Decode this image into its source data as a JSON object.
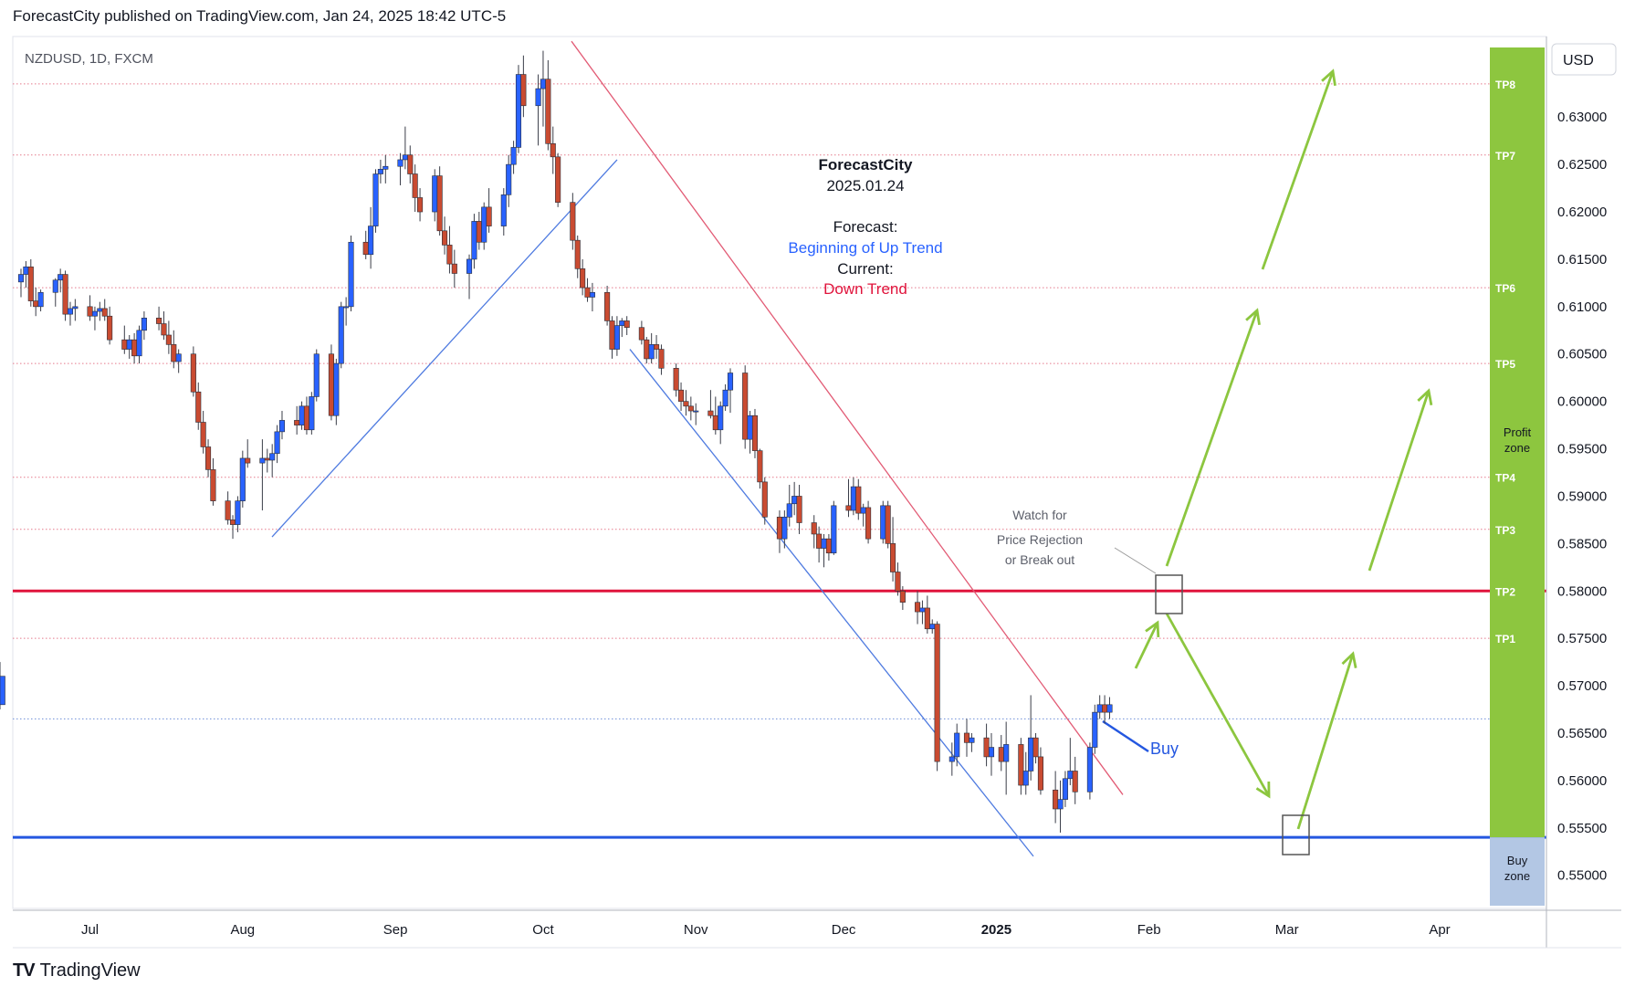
{
  "header": {
    "published": "ForecastCity published on TradingView.com, Jan 24, 2025 18:42 UTC-5"
  },
  "footer": {
    "brand": "TradingView",
    "logo": "TV"
  },
  "chart_data": {
    "type": "candlestick",
    "symbol": "NZDUSD, 1D, FXCM",
    "currency": "USD",
    "ylim": [
      0.5465,
      0.6385
    ],
    "y_ticks": [
      "0.63000",
      "0.62500",
      "0.62000",
      "0.61500",
      "0.61000",
      "0.60500",
      "0.60000",
      "0.59500",
      "0.59000",
      "0.58500",
      "0.58000",
      "0.57500",
      "0.57000",
      "0.56500",
      "0.56000",
      "0.55500",
      "0.55000"
    ],
    "x_ticks": [
      "Jul",
      "Aug",
      "Sep",
      "Oct",
      "Nov",
      "Dec",
      "2025",
      "Feb",
      "Mar",
      "Apr"
    ],
    "annotation": {
      "author": "ForecastCity",
      "date": "2025.01.24",
      "forecast_label": "Forecast:",
      "forecast_value": "Beginning of Up Trend",
      "current_label": "Current:",
      "current_value": "Down Trend"
    },
    "watch_note": [
      "Watch for",
      "Price Rejection",
      "or Break out"
    ],
    "buy_label": "Buy",
    "levels": [
      {
        "name": "TP8",
        "value": 0.6335
      },
      {
        "name": "TP7",
        "value": 0.626
      },
      {
        "name": "TP6",
        "value": 0.612
      },
      {
        "name": "TP5",
        "value": 0.604
      },
      {
        "name": "TP4",
        "value": 0.592
      },
      {
        "name": "TP3",
        "value": 0.5865
      },
      {
        "name": "TP2",
        "value": 0.58
      },
      {
        "name": "TP1",
        "value": 0.575
      }
    ],
    "resistance": 0.58,
    "support": 0.554,
    "dotted_blue_level": 0.5665,
    "zones": {
      "profit": "Profit zone",
      "buy": "Buy zone"
    },
    "colors": {
      "up": "#2962ff",
      "down": "#c94b31",
      "resistance": "#e0143c",
      "support": "#2457e0",
      "forecast_arrow": "#8cc63f",
      "profit_zone": "#8dc63f",
      "buy_zone": "#b3c7e4",
      "trend_line": "#e25b75",
      "channel": "#4f7be0"
    },
    "dates": [
      "2024-06-17",
      "2024-06-18",
      "2024-06-19",
      "2024-06-20",
      "2024-06-21",
      "2024-06-24",
      "2024-06-25",
      "2024-06-26",
      "2024-06-27",
      "2024-06-28",
      "2024-07-01",
      "2024-07-02",
      "2024-07-03",
      "2024-07-04",
      "2024-07-05",
      "2024-07-08",
      "2024-07-09",
      "2024-07-10",
      "2024-07-11",
      "2024-07-12",
      "2024-07-15",
      "2024-07-16",
      "2024-07-17",
      "2024-07-18",
      "2024-07-19",
      "2024-07-22",
      "2024-07-23",
      "2024-07-24",
      "2024-07-25",
      "2024-07-26",
      "2024-07-29",
      "2024-07-30",
      "2024-07-31",
      "2024-08-01",
      "2024-08-02",
      "2024-08-05",
      "2024-08-06",
      "2024-08-07",
      "2024-08-08",
      "2024-08-09",
      "2024-08-12",
      "2024-08-13",
      "2024-08-14",
      "2024-08-15",
      "2024-08-16",
      "2024-08-19",
      "2024-08-20",
      "2024-08-21",
      "2024-08-22",
      "2024-08-23",
      "2024-08-26",
      "2024-08-27",
      "2024-08-28",
      "2024-08-29",
      "2024-08-30",
      "2024-09-02",
      "2024-09-03",
      "2024-09-04",
      "2024-09-05",
      "2024-09-06",
      "2024-09-09",
      "2024-09-10",
      "2024-09-11",
      "2024-09-12",
      "2024-09-13",
      "2024-09-16",
      "2024-09-17",
      "2024-09-18",
      "2024-09-19",
      "2024-09-20",
      "2024-09-23",
      "2024-09-24",
      "2024-09-25",
      "2024-09-26",
      "2024-09-27",
      "2024-09-30",
      "2024-10-01",
      "2024-10-02",
      "2024-10-03",
      "2024-10-04",
      "2024-10-07",
      "2024-10-08",
      "2024-10-09",
      "2024-10-10",
      "2024-10-11",
      "2024-10-14",
      "2024-10-15",
      "2024-10-16",
      "2024-10-17",
      "2024-10-18",
      "2024-10-21",
      "2024-10-22",
      "2024-10-23",
      "2024-10-24",
      "2024-10-25",
      "2024-10-28",
      "2024-10-29",
      "2024-10-30",
      "2024-10-31",
      "2024-11-01",
      "2024-11-04",
      "2024-11-05",
      "2024-11-06",
      "2024-11-07",
      "2024-11-08",
      "2024-11-11",
      "2024-11-12",
      "2024-11-13",
      "2024-11-14",
      "2024-11-15",
      "2024-11-18",
      "2024-11-19",
      "2024-11-20",
      "2024-11-21",
      "2024-11-22",
      "2024-11-25",
      "2024-11-26",
      "2024-11-27",
      "2024-11-28",
      "2024-11-29",
      "2024-12-02",
      "2024-12-03",
      "2024-12-04",
      "2024-12-05",
      "2024-12-06",
      "2024-12-09",
      "2024-12-10",
      "2024-12-11",
      "2024-12-12",
      "2024-12-13",
      "2024-12-16",
      "2024-12-17",
      "2024-12-18",
      "2024-12-19",
      "2024-12-20",
      "2024-12-23",
      "2024-12-24",
      "2024-12-26",
      "2024-12-27",
      "2024-12-30",
      "2024-12-31",
      "2025-01-02",
      "2025-01-03",
      "2025-01-06",
      "2025-01-07",
      "2025-01-08",
      "2025-01-09",
      "2025-01-10",
      "2025-01-13",
      "2025-01-14",
      "2025-01-15",
      "2025-01-16",
      "2025-01-17",
      "2025-01-20",
      "2025-01-21",
      "2025-01-22",
      "2025-01-23",
      "2025-01-24"
    ],
    "ohlc": [
      [
        0.6126,
        0.614,
        0.611,
        0.6134
      ],
      [
        0.6134,
        0.6148,
        0.612,
        0.6142
      ],
      [
        0.6142,
        0.615,
        0.61,
        0.6106
      ],
      [
        0.6106,
        0.612,
        0.609,
        0.61
      ],
      [
        0.61,
        0.6118,
        0.6095,
        0.6115
      ],
      [
        0.6115,
        0.613,
        0.61,
        0.6128
      ],
      [
        0.6128,
        0.614,
        0.6115,
        0.6134
      ],
      [
        0.6134,
        0.6138,
        0.6085,
        0.6092
      ],
      [
        0.6092,
        0.6105,
        0.608,
        0.6098
      ],
      [
        0.6098,
        0.6108,
        0.6085,
        0.61
      ],
      [
        0.61,
        0.6112,
        0.6085,
        0.609
      ],
      [
        0.609,
        0.61,
        0.6075,
        0.6095
      ],
      [
        0.6095,
        0.6105,
        0.6085,
        0.6098
      ],
      [
        0.6098,
        0.6108,
        0.6085,
        0.609
      ],
      [
        0.609,
        0.61,
        0.606,
        0.6065
      ],
      [
        0.6065,
        0.608,
        0.605,
        0.6055
      ],
      [
        0.6055,
        0.607,
        0.6045,
        0.6065
      ],
      [
        0.6065,
        0.6072,
        0.604,
        0.6048
      ],
      [
        0.6048,
        0.608,
        0.604,
        0.6075
      ],
      [
        0.6075,
        0.6095,
        0.6065,
        0.6088
      ],
      [
        0.6088,
        0.61,
        0.6075,
        0.6082
      ],
      [
        0.6082,
        0.6095,
        0.6065,
        0.607
      ],
      [
        0.607,
        0.6085,
        0.605,
        0.606
      ],
      [
        0.606,
        0.6075,
        0.6035,
        0.6042
      ],
      [
        0.6042,
        0.6055,
        0.603,
        0.605
      ],
      [
        0.605,
        0.6058,
        0.6005,
        0.601
      ],
      [
        0.601,
        0.602,
        0.597,
        0.5978
      ],
      [
        0.5978,
        0.599,
        0.5945,
        0.5952
      ],
      [
        0.5952,
        0.596,
        0.592,
        0.5928
      ],
      [
        0.5928,
        0.594,
        0.589,
        0.5895
      ],
      [
        0.5895,
        0.5905,
        0.587,
        0.5875
      ],
      [
        0.5875,
        0.588,
        0.5855,
        0.587
      ],
      [
        0.587,
        0.59,
        0.5862,
        0.5895
      ],
      [
        0.5895,
        0.5948,
        0.5888,
        0.594
      ],
      [
        0.594,
        0.596,
        0.593,
        0.5935
      ],
      [
        0.5935,
        0.596,
        0.5885,
        0.594
      ],
      [
        0.594,
        0.595,
        0.5925,
        0.5938
      ],
      [
        0.5938,
        0.5955,
        0.592,
        0.5945
      ],
      [
        0.5945,
        0.5975,
        0.5935,
        0.5968
      ],
      [
        0.5968,
        0.599,
        0.596,
        0.598
      ],
      [
        0.598,
        0.5995,
        0.5965,
        0.5975
      ],
      [
        0.5975,
        0.6,
        0.597,
        0.5995
      ],
      [
        0.5995,
        0.6005,
        0.5965,
        0.597
      ],
      [
        0.597,
        0.601,
        0.5965,
        0.6005
      ],
      [
        0.6005,
        0.6055,
        0.6,
        0.605
      ],
      [
        0.605,
        0.606,
        0.598,
        0.5985
      ],
      [
        0.5985,
        0.6045,
        0.5975,
        0.604
      ],
      [
        0.604,
        0.6105,
        0.6035,
        0.61
      ],
      [
        0.61,
        0.611,
        0.608,
        0.61
      ],
      [
        0.61,
        0.6175,
        0.6095,
        0.6168
      ],
      [
        0.6168,
        0.618,
        0.615,
        0.6155
      ],
      [
        0.6155,
        0.6205,
        0.614,
        0.6185
      ],
      [
        0.6185,
        0.6245,
        0.6178,
        0.624
      ],
      [
        0.624,
        0.6255,
        0.623,
        0.6245
      ],
      [
        0.6245,
        0.626,
        0.623,
        0.6248
      ],
      [
        0.6248,
        0.6262,
        0.6228,
        0.6255
      ],
      [
        0.6255,
        0.629,
        0.6245,
        0.626
      ],
      [
        0.626,
        0.627,
        0.623,
        0.624
      ],
      [
        0.624,
        0.625,
        0.62,
        0.6215
      ],
      [
        0.6215,
        0.6225,
        0.619,
        0.62
      ],
      [
        0.62,
        0.6245,
        0.619,
        0.6238
      ],
      [
        0.6238,
        0.6248,
        0.6175,
        0.618
      ],
      [
        0.618,
        0.6195,
        0.6155,
        0.6165
      ],
      [
        0.6165,
        0.6185,
        0.6135,
        0.6145
      ],
      [
        0.6145,
        0.616,
        0.612,
        0.6135
      ],
      [
        0.6135,
        0.6155,
        0.6108,
        0.615
      ],
      [
        0.615,
        0.6198,
        0.614,
        0.619
      ],
      [
        0.619,
        0.62,
        0.616,
        0.6168
      ],
      [
        0.6168,
        0.621,
        0.616,
        0.6205
      ],
      [
        0.6205,
        0.6225,
        0.6178,
        0.6185
      ],
      [
        0.6185,
        0.6225,
        0.6175,
        0.6218
      ],
      [
        0.6218,
        0.626,
        0.6205,
        0.625
      ],
      [
        0.625,
        0.6275,
        0.624,
        0.6268
      ],
      [
        0.6268,
        0.6355,
        0.6262,
        0.6345
      ],
      [
        0.6345,
        0.6365,
        0.63,
        0.6312
      ],
      [
        0.6312,
        0.6345,
        0.627,
        0.633
      ],
      [
        0.633,
        0.637,
        0.629,
        0.634
      ],
      [
        0.634,
        0.636,
        0.6265,
        0.6272
      ],
      [
        0.6272,
        0.629,
        0.624,
        0.6258
      ],
      [
        0.6258,
        0.6262,
        0.6205,
        0.621
      ],
      [
        0.621,
        0.622,
        0.616,
        0.617
      ],
      [
        0.617,
        0.6175,
        0.613,
        0.614
      ],
      [
        0.614,
        0.615,
        0.6112,
        0.612
      ],
      [
        0.612,
        0.613,
        0.6105,
        0.611
      ],
      [
        0.611,
        0.6125,
        0.6095,
        0.6115
      ],
      [
        0.6115,
        0.6122,
        0.608,
        0.6085
      ],
      [
        0.6085,
        0.609,
        0.6045,
        0.6055
      ],
      [
        0.6055,
        0.609,
        0.6048,
        0.608
      ],
      [
        0.608,
        0.6088,
        0.6068,
        0.6085
      ],
      [
        0.6085,
        0.609,
        0.607,
        0.6078
      ],
      [
        0.6078,
        0.6085,
        0.606,
        0.6065
      ],
      [
        0.6065,
        0.6068,
        0.604,
        0.6045
      ],
      [
        0.6045,
        0.6072,
        0.604,
        0.606
      ],
      [
        0.606,
        0.607,
        0.6045,
        0.6055
      ],
      [
        0.6055,
        0.606,
        0.6028,
        0.6035
      ],
      [
        0.6035,
        0.604,
        0.6005,
        0.6012
      ],
      [
        0.6012,
        0.602,
        0.599,
        0.6
      ],
      [
        0.6,
        0.6012,
        0.5985,
        0.5995
      ],
      [
        0.5995,
        0.6005,
        0.598,
        0.599
      ],
      [
        0.599,
        0.5998,
        0.5975,
        0.599
      ],
      [
        0.599,
        0.6012,
        0.5982,
        0.5985
      ],
      [
        0.5985,
        0.6005,
        0.5965,
        0.597
      ],
      [
        0.597,
        0.6,
        0.5955,
        0.5995
      ],
      [
        0.5995,
        0.6018,
        0.599,
        0.6012
      ],
      [
        0.6012,
        0.6035,
        0.5988,
        0.603
      ],
      [
        0.603,
        0.6038,
        0.595,
        0.596
      ],
      [
        0.596,
        0.599,
        0.5945,
        0.5985
      ],
      [
        0.5985,
        0.5992,
        0.594,
        0.5948
      ],
      [
        0.5948,
        0.595,
        0.5908,
        0.5915
      ],
      [
        0.5915,
        0.592,
        0.587,
        0.5878
      ],
      [
        0.5878,
        0.5885,
        0.584,
        0.5855
      ],
      [
        0.5855,
        0.5885,
        0.5845,
        0.5878
      ],
      [
        0.5878,
        0.5912,
        0.5868,
        0.5892
      ],
      [
        0.5892,
        0.5915,
        0.588,
        0.59
      ],
      [
        0.59,
        0.5912,
        0.586,
        0.5872
      ],
      [
        0.5872,
        0.588,
        0.5845,
        0.586
      ],
      [
        0.586,
        0.5868,
        0.583,
        0.5845
      ],
      [
        0.5845,
        0.586,
        0.5825,
        0.5855
      ],
      [
        0.5855,
        0.586,
        0.5832,
        0.584
      ],
      [
        0.584,
        0.5895,
        0.5838,
        0.589
      ],
      [
        0.589,
        0.5918,
        0.5878,
        0.5885
      ],
      [
        0.5885,
        0.592,
        0.588,
        0.591
      ],
      [
        0.591,
        0.5918,
        0.5875,
        0.5882
      ],
      [
        0.5882,
        0.5892,
        0.5868,
        0.5888
      ],
      [
        0.5888,
        0.5895,
        0.585,
        0.5855
      ],
      [
        0.5855,
        0.5895,
        0.585,
        0.589
      ],
      [
        0.589,
        0.5895,
        0.5845,
        0.585
      ],
      [
        0.585,
        0.5878,
        0.581,
        0.582
      ],
      [
        0.582,
        0.583,
        0.5795,
        0.58
      ],
      [
        0.58,
        0.5805,
        0.578,
        0.5788
      ],
      [
        0.5788,
        0.58,
        0.5765,
        0.5778
      ],
      [
        0.5778,
        0.579,
        0.5765,
        0.5782
      ],
      [
        0.5782,
        0.5795,
        0.5755,
        0.576
      ],
      [
        0.576,
        0.577,
        0.5755,
        0.5765
      ],
      [
        0.5765,
        0.5768,
        0.561,
        0.562
      ],
      [
        0.562,
        0.564,
        0.5605,
        0.5625
      ],
      [
        0.5625,
        0.566,
        0.5615,
        0.565
      ],
      [
        0.565,
        0.5665,
        0.5625,
        0.564
      ],
      [
        0.564,
        0.565,
        0.563,
        0.5645
      ],
      [
        0.5645,
        0.566,
        0.5615,
        0.5625
      ],
      [
        0.5625,
        0.565,
        0.5605,
        0.5635
      ],
      [
        0.5635,
        0.5648,
        0.561,
        0.562
      ],
      [
        0.562,
        0.5662,
        0.5585,
        0.5638
      ],
      [
        0.5638,
        0.5645,
        0.5585,
        0.5595
      ],
      [
        0.5595,
        0.563,
        0.5585,
        0.561
      ],
      [
        0.561,
        0.569,
        0.56,
        0.5645
      ],
      [
        0.5645,
        0.565,
        0.5618,
        0.5625
      ],
      [
        0.5625,
        0.5635,
        0.5585,
        0.559
      ],
      [
        0.559,
        0.561,
        0.5555,
        0.557
      ],
      [
        0.557,
        0.56,
        0.5545,
        0.558
      ],
      [
        0.558,
        0.561,
        0.5572,
        0.5602
      ],
      [
        0.5602,
        0.5645,
        0.5595,
        0.561
      ],
      [
        0.561,
        0.5625,
        0.5575,
        0.5588
      ],
      [
        0.5588,
        0.564,
        0.558,
        0.5635
      ],
      [
        0.5635,
        0.568,
        0.5628,
        0.5672
      ],
      [
        0.5672,
        0.569,
        0.5665,
        0.568
      ],
      [
        0.568,
        0.569,
        0.566,
        0.5672
      ],
      [
        0.5672,
        0.5688,
        0.5665,
        0.568
      ],
      [
        0.568,
        0.5725,
        0.5675,
        0.571
      ]
    ]
  }
}
